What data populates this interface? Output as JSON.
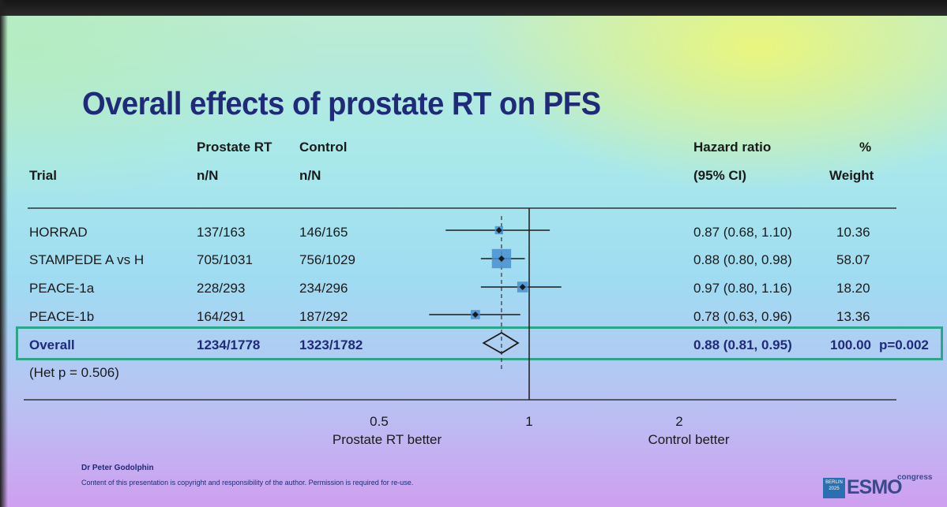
{
  "title": "Overall effects of prostate RT on PFS",
  "headers": {
    "trial": "Trial",
    "rt_line1": "Prostate RT",
    "rt_line2": "n/N",
    "control_line1": "Control",
    "control_line2": "n/N",
    "hr_line1": "Hazard ratio",
    "hr_line2": "(95% CI)",
    "weight_line1": "%",
    "weight_line2": "Weight"
  },
  "rows": [
    {
      "trial": "HORRAD",
      "rt": "137/163",
      "control": "146/165",
      "hr_text": "0.87 (0.68, 1.10)",
      "weight": "10.36"
    },
    {
      "trial": "STAMPEDE A vs H",
      "rt": "705/1031",
      "control": "756/1029",
      "hr_text": "0.88 (0.80, 0.98)",
      "weight": "58.07"
    },
    {
      "trial": "PEACE-1a",
      "rt": "228/293",
      "control": "234/296",
      "hr_text": "0.97 (0.80, 1.16)",
      "weight": "18.20"
    },
    {
      "trial": "PEACE-1b",
      "rt": "164/291",
      "control": "187/292",
      "hr_text": "0.78 (0.63, 0.96)",
      "weight": "13.36"
    }
  ],
  "overall": {
    "label": "Overall",
    "rt": "1234/1778",
    "control": "1323/1782",
    "hr_text": "0.88 (0.81, 0.95)",
    "weight": "100.00",
    "p_value": "p=0.002"
  },
  "heterogeneity": "(Het p = 0.506)",
  "x_axis": {
    "ticks": [
      "0.5",
      "1",
      "2"
    ],
    "left_label": "Prostate RT better",
    "right_label": "Control better"
  },
  "footer": {
    "author": "Dr Peter Godolphin",
    "copyright": "Content of this presentation is copyright and responsibility of the author. Permission is required for re-use."
  },
  "logo": {
    "badge_line1": "BERLIN",
    "badge_line2": "2025",
    "name": "ESMO",
    "suffix": "congress"
  },
  "colors": {
    "title": "#1f2a78",
    "highlight_box": "#2ea58a",
    "weight_square": "#4a8fd0",
    "marker": "#1a1a1a"
  },
  "chart_data": {
    "type": "forest",
    "scale": "log",
    "xlim": [
      0.4,
      3.0
    ],
    "null_line": 1,
    "pooled_line": 0.88,
    "series": [
      {
        "name": "HORRAD",
        "hr": 0.87,
        "lo": 0.68,
        "hi": 1.1,
        "weight": 10.36
      },
      {
        "name": "STAMPEDE A vs H",
        "hr": 0.88,
        "lo": 0.8,
        "hi": 0.98,
        "weight": 58.07
      },
      {
        "name": "PEACE-1a",
        "hr": 0.97,
        "lo": 0.8,
        "hi": 1.16,
        "weight": 18.2
      },
      {
        "name": "PEACE-1b",
        "hr": 0.78,
        "lo": 0.63,
        "hi": 0.96,
        "weight": 13.36
      }
    ],
    "pooled": {
      "name": "Overall",
      "hr": 0.88,
      "lo": 0.81,
      "hi": 0.95
    }
  }
}
